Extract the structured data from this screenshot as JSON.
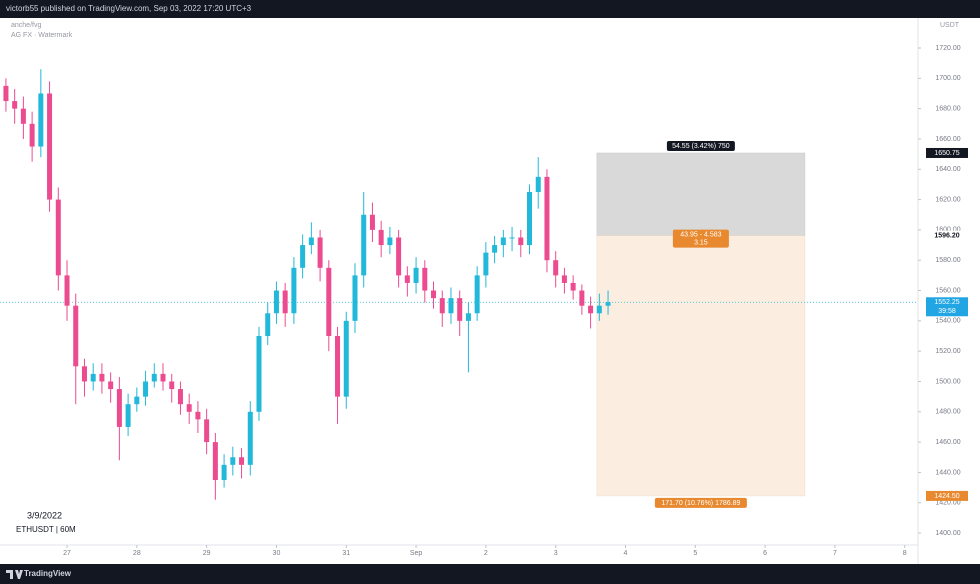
{
  "header": {
    "text": "victorb55 published on TradingView.com, Sep 03, 2022 17:20 UTC+3"
  },
  "watermark": {
    "line1": "anche/fvg",
    "line2": "AG FX · Watermark"
  },
  "footer": {
    "brand": "TradingView"
  },
  "chart_data": {
    "type": "candlestick",
    "date": "3/9/2022",
    "symbol": "ETHUSDT | 60M",
    "y_axis_label": "USDT",
    "up_color": "#22b8d9",
    "down_color": "#ec4b8f",
    "grid": false,
    "xlim": [
      26.04,
      39.19
    ],
    "xticks": [
      27,
      28,
      29,
      30,
      31,
      {
        "value": 32,
        "label": "Sep"
      },
      {
        "value": 33,
        "label": "2"
      },
      {
        "value": 34,
        "label": "3"
      },
      {
        "value": 35,
        "label": "4"
      },
      {
        "value": 36,
        "label": "5"
      },
      {
        "value": 37,
        "label": "6"
      },
      {
        "value": 38,
        "label": "7"
      },
      {
        "value": 39,
        "label": "8"
      }
    ],
    "ylim": [
      1380.9,
      1739.8
    ],
    "yticks": [
      {
        "value": 1400,
        "label": "1400.00"
      },
      {
        "value": 1420,
        "label": "1420.00"
      },
      {
        "value": 1440,
        "label": "1440.00"
      },
      {
        "value": 1460,
        "label": "1460.00"
      },
      {
        "value": 1480,
        "label": "1480.00"
      },
      {
        "value": 1500,
        "label": "1500.00"
      },
      {
        "value": 1520,
        "label": "1520.00"
      },
      {
        "value": 1540,
        "label": "1540.00"
      },
      {
        "value": 1560,
        "label": "1560.00"
      },
      {
        "value": 1580,
        "label": "1580.00"
      },
      {
        "value": 1600,
        "label": "1600.00"
      },
      {
        "value": 1620,
        "label": "1620.00"
      },
      {
        "value": 1640,
        "label": "1640.00"
      },
      {
        "value": 1660,
        "label": "1660.00"
      },
      {
        "value": 1680,
        "label": "1680.00"
      },
      {
        "value": 1700,
        "label": "1700.00"
      },
      {
        "value": 1720,
        "label": "1720.00"
      }
    ],
    "x": [
      26.125,
      26.25,
      26.375,
      26.5,
      26.625,
      26.75,
      26.875,
      27,
      27.125,
      27.25,
      27.375,
      27.5,
      27.625,
      27.75,
      27.875,
      28,
      28.125,
      28.25,
      28.375,
      28.5,
      28.625,
      28.75,
      28.875,
      29,
      29.125,
      29.25,
      29.375,
      29.5,
      29.625,
      29.75,
      29.875,
      30,
      30.125,
      30.25,
      30.375,
      30.5,
      30.625,
      30.75,
      30.875,
      31,
      31.125,
      31.25,
      31.375,
      31.5,
      31.625,
      31.75,
      31.875,
      32,
      32.125,
      32.25,
      32.375,
      32.5,
      32.625,
      32.75,
      32.875,
      33,
      33.125,
      33.25,
      33.375,
      33.5,
      33.625,
      33.75,
      33.875,
      34,
      34.125,
      34.25,
      34.375,
      34.5,
      34.625,
      34.75
    ],
    "open": [
      1695,
      1685,
      1680,
      1670,
      1655,
      1690,
      1620,
      1570,
      1550,
      1510,
      1500,
      1505,
      1500,
      1495,
      1470,
      1485,
      1490,
      1500,
      1505,
      1500,
      1495,
      1485,
      1480,
      1475,
      1460,
      1435,
      1445,
      1450,
      1445,
      1480,
      1530,
      1545,
      1560,
      1545,
      1575,
      1590,
      1595,
      1575,
      1530,
      1490,
      1540,
      1570,
      1610,
      1600,
      1590,
      1595,
      1570,
      1565,
      1575,
      1560,
      1555,
      1545,
      1555,
      1540,
      1545,
      1570,
      1585,
      1590,
      1595,
      1595,
      1590,
      1625,
      1635,
      1580,
      1570,
      1565,
      1560,
      1550,
      1545,
      1550
    ],
    "high": [
      1700,
      1693,
      1688,
      1678,
      1706,
      1698,
      1628,
      1580,
      1558,
      1515,
      1512,
      1512,
      1506,
      1503,
      1492,
      1496,
      1507,
      1512,
      1512,
      1505,
      1500,
      1492,
      1487,
      1482,
      1466,
      1452,
      1457,
      1456,
      1487,
      1536,
      1552,
      1566,
      1565,
      1582,
      1597,
      1605,
      1600,
      1580,
      1536,
      1546,
      1578,
      1625,
      1618,
      1606,
      1602,
      1600,
      1576,
      1582,
      1580,
      1566,
      1560,
      1562,
      1560,
      1552,
      1576,
      1592,
      1596,
      1600,
      1602,
      1600,
      1630,
      1648,
      1640,
      1586,
      1575,
      1570,
      1564,
      1556,
      1558,
      1560
    ],
    "low": [
      1678,
      1670,
      1660,
      1645,
      1648,
      1612,
      1560,
      1540,
      1485,
      1490,
      1494,
      1492,
      1486,
      1448,
      1464,
      1480,
      1484,
      1496,
      1494,
      1486,
      1478,
      1472,
      1466,
      1452,
      1422,
      1430,
      1438,
      1436,
      1438,
      1474,
      1524,
      1538,
      1536,
      1538,
      1568,
      1584,
      1566,
      1520,
      1472,
      1482,
      1532,
      1562,
      1592,
      1582,
      1584,
      1562,
      1556,
      1558,
      1552,
      1548,
      1536,
      1538,
      1530,
      1506,
      1540,
      1562,
      1578,
      1582,
      1586,
      1582,
      1584,
      1614,
      1572,
      1562,
      1558,
      1554,
      1544,
      1535,
      1540,
      1544
    ],
    "close": [
      1685,
      1680,
      1670,
      1655,
      1690,
      1620,
      1570,
      1550,
      1510,
      1500,
      1505,
      1500,
      1495,
      1470,
      1485,
      1490,
      1500,
      1505,
      1500,
      1495,
      1485,
      1480,
      1475,
      1460,
      1435,
      1445,
      1450,
      1445,
      1480,
      1530,
      1545,
      1560,
      1545,
      1575,
      1590,
      1595,
      1575,
      1530,
      1490,
      1540,
      1570,
      1610,
      1600,
      1590,
      1595,
      1570,
      1565,
      1575,
      1560,
      1555,
      1545,
      1555,
      1540,
      1545,
      1570,
      1585,
      1590,
      1595,
      1595,
      1590,
      1625,
      1635,
      1580,
      1570,
      1565,
      1560,
      1550,
      1545,
      1550,
      1552.25
    ],
    "countdown": "39:58",
    "position": {
      "x_start": 34.59,
      "x_end": 37.57,
      "target": 1650.75,
      "entry": {
        "value": 1596.2,
        "label": "1596.20"
      },
      "stop": {
        "value": 1424.5,
        "label": "1424.50"
      },
      "target_label": "54.55 (3.42%) 750",
      "ratio_label": "43.95 - 4.583",
      "ratio_value": "3.15",
      "stop_label": "171.70 (10.76%) 1786.89"
    }
  }
}
